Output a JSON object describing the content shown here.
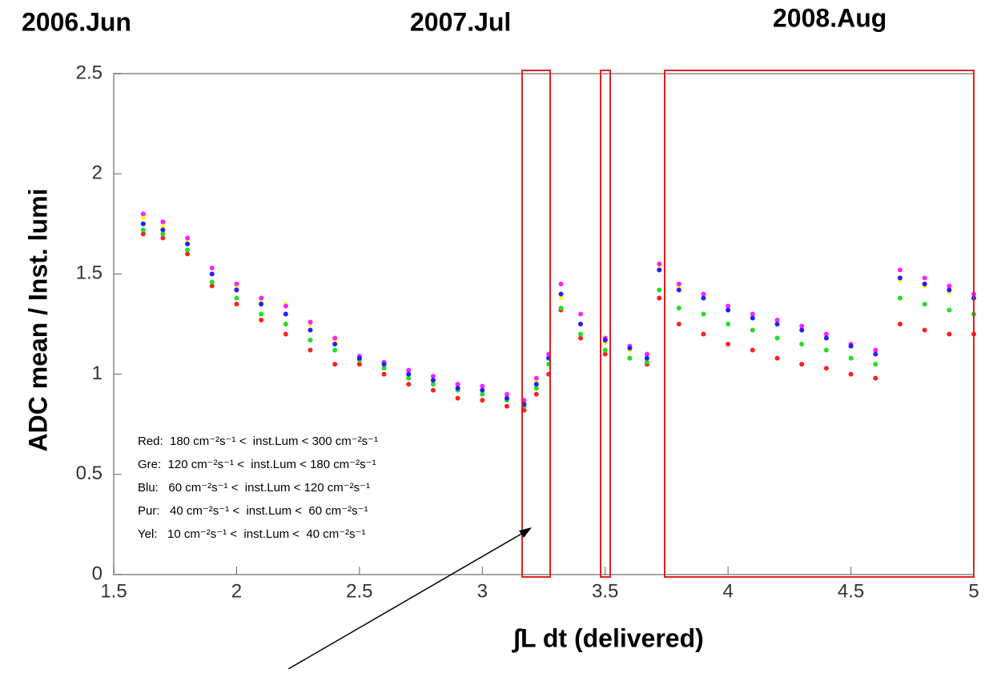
{
  "chart_data": {
    "type": "scatter",
    "annotations": [
      "2006.Jun",
      "2007.Jul",
      "2008.Aug"
    ],
    "xlabel": "∫L dt  (delivered)",
    "ylabel": "ADC mean / Inst. lumi",
    "xlim": [
      1.5,
      5
    ],
    "ylim": [
      0,
      2.5
    ],
    "xticks": [
      1.5,
      2,
      2.5,
      3,
      3.5,
      4,
      4.5,
      5
    ],
    "yticks": [
      0,
      0.5,
      1,
      1.5,
      2,
      2.5
    ],
    "x": [
      1.62,
      1.7,
      1.8,
      1.9,
      2.0,
      2.1,
      2.2,
      2.3,
      2.4,
      2.5,
      2.6,
      2.7,
      2.8,
      2.9,
      3.0,
      3.1,
      3.17,
      3.22,
      3.27,
      3.32,
      3.4,
      3.5,
      3.6,
      3.67,
      3.72,
      3.8,
      3.9,
      4.0,
      4.1,
      4.2,
      4.3,
      4.4,
      4.5,
      4.6,
      4.7,
      4.8,
      4.9,
      5.0
    ],
    "series": [
      {
        "name": "Red:  180 cm⁻²s⁻¹ <  inst.Lum < 300 cm⁻²s⁻¹",
        "color": "#ff2020",
        "values": [
          1.7,
          1.68,
          1.6,
          1.44,
          1.35,
          1.27,
          1.2,
          1.12,
          1.05,
          1.05,
          1.0,
          0.95,
          0.92,
          0.88,
          0.87,
          0.84,
          0.82,
          0.9,
          1.0,
          1.32,
          1.18,
          1.1,
          1.08,
          1.05,
          1.38,
          1.25,
          1.2,
          1.15,
          1.12,
          1.08,
          1.05,
          1.03,
          1.0,
          0.98,
          1.25,
          1.22,
          1.2,
          1.2
        ]
      },
      {
        "name": "Gre:  120 cm⁻²s⁻¹ <  inst.Lum < 180 cm⁻²s⁻¹",
        "color": "#20e020",
        "values": [
          1.72,
          1.7,
          1.62,
          1.46,
          1.38,
          1.3,
          1.25,
          1.17,
          1.12,
          1.07,
          1.03,
          0.98,
          0.95,
          0.92,
          0.9,
          0.87,
          0.84,
          0.93,
          1.05,
          1.33,
          1.2,
          1.12,
          1.08,
          1.06,
          1.42,
          1.33,
          1.3,
          1.25,
          1.22,
          1.18,
          1.15,
          1.12,
          1.08,
          1.05,
          1.38,
          1.35,
          1.32,
          1.3
        ]
      },
      {
        "name": "Blu:   60 cm⁻²s⁻¹ <  inst.Lum < 120 cm⁻²s⁻¹",
        "color": "#2020ff",
        "values": [
          1.75,
          1.72,
          1.65,
          1.5,
          1.42,
          1.35,
          1.3,
          1.22,
          1.15,
          1.08,
          1.05,
          1.0,
          0.97,
          0.93,
          0.92,
          0.88,
          0.85,
          0.95,
          1.08,
          1.4,
          1.25,
          1.17,
          1.13,
          1.08,
          1.52,
          1.42,
          1.38,
          1.32,
          1.28,
          1.25,
          1.22,
          1.18,
          1.14,
          1.1,
          1.48,
          1.45,
          1.42,
          1.38
        ]
      },
      {
        "name": "Pur:   40 cm⁻²s⁻¹ <  inst.Lum <  60 cm⁻²s⁻¹",
        "color": "#ff20ff",
        "values": [
          1.8,
          1.76,
          1.68,
          1.53,
          1.45,
          1.38,
          1.34,
          1.26,
          1.18,
          1.09,
          1.06,
          1.02,
          0.99,
          0.95,
          0.94,
          0.9,
          0.87,
          0.98,
          1.1,
          1.45,
          1.3,
          1.18,
          1.14,
          1.1,
          1.55,
          1.45,
          1.4,
          1.34,
          1.3,
          1.27,
          1.24,
          1.2,
          1.15,
          1.12,
          1.52,
          1.48,
          1.44,
          1.4
        ]
      },
      {
        "name": "Yel:   10 cm⁻²s⁻¹ <  inst.Lum <  40 cm⁻²s⁻¹",
        "color": "#ffff20",
        "values": [
          1.78,
          1.74,
          1.66,
          1.5,
          1.43,
          1.36,
          1.35,
          1.25,
          1.17,
          1.08,
          1.04,
          1.0,
          0.97,
          0.93,
          0.92,
          0.88,
          0.86,
          0.96,
          1.08,
          1.38,
          1.25,
          1.16,
          1.12,
          1.08,
          1.53,
          1.43,
          1.38,
          1.32,
          1.28,
          1.25,
          1.22,
          1.18,
          1.14,
          1.1,
          1.47,
          1.44,
          1.41,
          1.38
        ]
      }
    ]
  }
}
